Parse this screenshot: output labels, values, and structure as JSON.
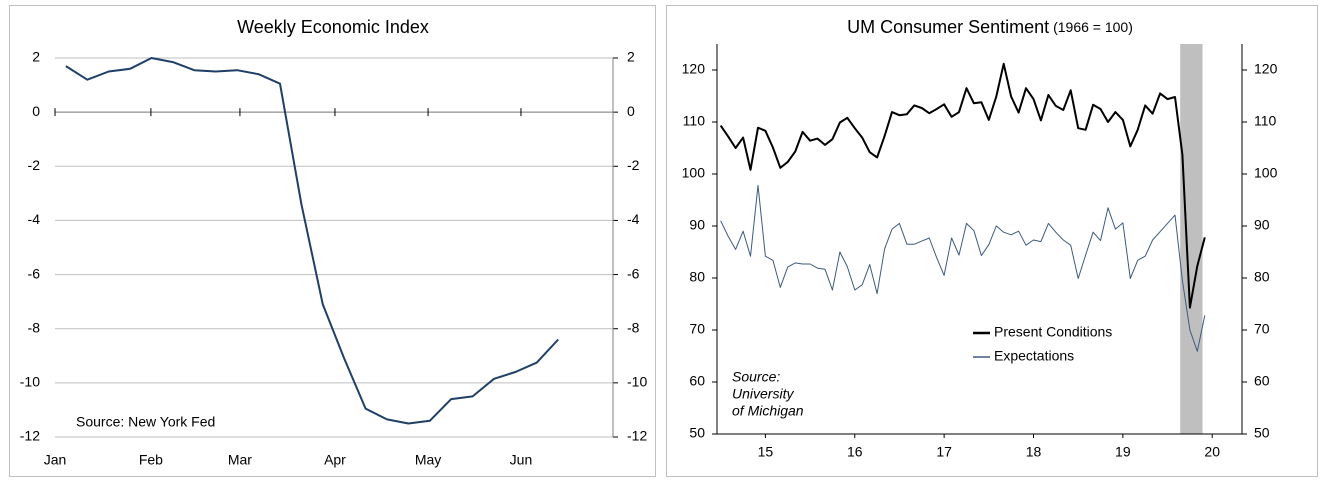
{
  "chart_data": [
    {
      "type": "line",
      "title": "Weekly Economic Index",
      "annotation": "Source: New York Fed",
      "color": "#1f3f66",
      "xlim": [
        -0.51,
        25.56
      ],
      "xticks": [
        {
          "value": -0.51,
          "label": "Jan"
        },
        {
          "value": 3.97,
          "label": "Feb"
        },
        {
          "value": 8.13,
          "label": "Mar"
        },
        {
          "value": 12.57,
          "label": "Apr"
        },
        {
          "value": 16.92,
          "label": "May"
        },
        {
          "value": 21.26,
          "label": "Jun"
        }
      ],
      "ylim": [
        -12,
        2
      ],
      "yticks": [
        -12,
        -10,
        -8,
        -6,
        -4,
        -2,
        0,
        2
      ],
      "y2lim": [
        -12,
        2
      ],
      "y2ticks": [
        -12,
        -10,
        -8,
        -6,
        -4,
        -2,
        0,
        2
      ],
      "grid": true,
      "values": [
        1.7,
        1.2,
        1.5,
        1.6,
        2.0,
        1.85,
        1.55,
        1.5,
        1.55,
        1.4,
        1.05,
        -3.4,
        -7.1,
        -9.1,
        -10.95,
        -11.35,
        -11.5,
        -11.4,
        -10.6,
        -10.5,
        -9.85,
        -9.6,
        -9.25,
        -8.4
      ]
    },
    {
      "type": "line",
      "title": "UM Consumer Sentiment",
      "subtitle": "(1966 = 100)",
      "annotation": [
        "Source:",
        "University",
        "of Michigan"
      ],
      "xlim": [
        -0.5,
        70
      ],
      "xticks": [
        {
          "value": 6,
          "label": "15"
        },
        {
          "value": 18,
          "label": "16"
        },
        {
          "value": 30,
          "label": "17"
        },
        {
          "value": 42,
          "label": "18"
        },
        {
          "value": 54,
          "label": "19"
        },
        {
          "value": 66,
          "label": "20"
        }
      ],
      "ylim": [
        50,
        125
      ],
      "yticks": [
        50,
        60,
        70,
        80,
        90,
        100,
        110,
        120
      ],
      "y2lim": [
        50,
        125
      ],
      "y2ticks": [
        50,
        60,
        70,
        80,
        90,
        100,
        110,
        120
      ],
      "grid": false,
      "shaded_region": [
        61.7,
        64.7
      ],
      "shade_color": "#bfbfbf",
      "series": [
        {
          "name": "Present Conditions",
          "color": "#000000",
          "width": 2,
          "values": [
            109.3,
            107.2,
            105.0,
            107.0,
            100.8,
            108.9,
            108.3,
            105.1,
            101.2,
            102.3,
            104.3,
            108.1,
            106.4,
            106.8,
            105.6,
            106.7,
            109.9,
            110.8,
            108.8,
            107.0,
            104.2,
            103.2,
            107.3,
            111.9,
            111.3,
            111.5,
            113.2,
            112.7,
            111.7,
            112.5,
            113.4,
            111.0,
            111.9,
            116.5,
            113.6,
            113.8,
            110.4,
            114.9,
            121.2,
            114.9,
            111.8,
            116.5,
            114.4,
            110.3,
            115.2,
            113.1,
            112.3,
            116.1,
            108.8,
            108.5,
            113.3,
            112.5,
            110.0,
            111.9,
            110.4,
            105.3,
            108.5,
            113.2,
            111.6,
            115.5,
            114.4,
            114.8,
            103.7,
            74.3,
            82.3,
            87.8
          ]
        },
        {
          "name": "Expectations",
          "color": "#3d5a80",
          "width": 1,
          "values": [
            91.0,
            88.0,
            85.5,
            89.0,
            84.2,
            97.8,
            84.2,
            83.4,
            78.2,
            82.1,
            82.9,
            82.7,
            82.7,
            81.9,
            81.7,
            77.7,
            85.0,
            82.2,
            77.7,
            78.7,
            82.6,
            77.0,
            85.6,
            89.4,
            90.5,
            86.5,
            86.5,
            87.1,
            87.7,
            83.9,
            80.5,
            87.7,
            84.4,
            90.5,
            89.1,
            84.3,
            86.4,
            90.0,
            88.8,
            88.3,
            89.0,
            86.3,
            87.3,
            87.0,
            90.5,
            88.8,
            87.3,
            86.3,
            79.9,
            84.4,
            88.8,
            87.2,
            93.5,
            89.4,
            90.6,
            79.9,
            83.4,
            84.2,
            87.3,
            88.9,
            90.5,
            92.1,
            79.5,
            70.0,
            65.9,
            72.8
          ]
        }
      ]
    }
  ]
}
